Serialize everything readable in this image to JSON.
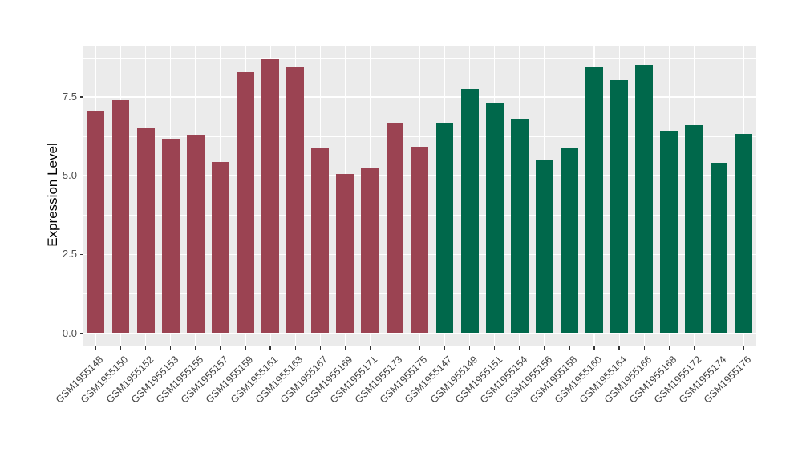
{
  "chart_data": {
    "type": "bar",
    "title": "",
    "xlabel": "",
    "ylabel": "Expression Level",
    "ylim": [
      0,
      9.1
    ],
    "grid": true,
    "legend": "none",
    "yticks": [
      {
        "value": 0.0,
        "label": "0.0"
      },
      {
        "value": 2.5,
        "label": "2.5"
      },
      {
        "value": 5.0,
        "label": "5.0"
      },
      {
        "value": 7.5,
        "label": "7.5"
      }
    ],
    "categories": [
      "GSM1955148",
      "GSM1955150",
      "GSM1955152",
      "GSM1955153",
      "GSM1955155",
      "GSM1955157",
      "GSM1955159",
      "GSM1955161",
      "GSM1955163",
      "GSM1955167",
      "GSM1955169",
      "GSM1955171",
      "GSM1955173",
      "GSM1955175",
      "GSM1955147",
      "GSM1955149",
      "GSM1955151",
      "GSM1955154",
      "GSM1955156",
      "GSM1955158",
      "GSM1955160",
      "GSM1955164",
      "GSM1955166",
      "GSM1955168",
      "GSM1955172",
      "GSM1955174",
      "GSM1955176"
    ],
    "values": [
      7.04,
      7.4,
      6.5,
      6.15,
      6.31,
      5.43,
      8.29,
      8.7,
      8.45,
      5.89,
      5.06,
      5.23,
      6.65,
      5.93,
      6.65,
      7.76,
      7.31,
      6.78,
      5.5,
      5.89,
      8.43,
      8.04,
      8.53,
      6.4,
      6.61,
      5.42,
      6.32
    ],
    "groups": [
      {
        "color": "#9B4352",
        "from": 0,
        "to": 13
      },
      {
        "color": "#00684B",
        "from": 14,
        "to": 26
      }
    ],
    "colors": {
      "panel_background": "#EBEBEB",
      "gridline": "#FFFFFF",
      "tick_mark": "#333333",
      "axis_text": "#4d4d4d",
      "axis_title": "#000000",
      "figure_background": "#FFFFFF"
    }
  }
}
